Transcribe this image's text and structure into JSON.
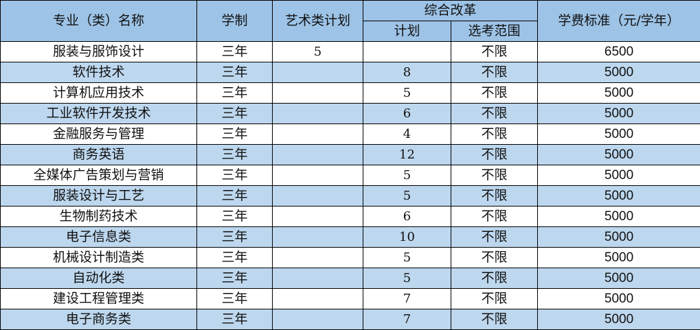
{
  "header": {
    "name": "专业（类）名称",
    "duration": "学制",
    "art_plan": "艺术类计划",
    "reform": "综合改革",
    "reform_plan": "计划",
    "reform_scope": "选考范围",
    "fee": "学费标准（元/学年）"
  },
  "colors": {
    "header_bg": "#9dc3e6",
    "alt_row_bg": "#bdd7ee"
  },
  "rows": [
    {
      "name": "服装与服饰设计",
      "duration": "三年",
      "art_plan": "5",
      "plan": "",
      "scope": "不限",
      "fee": "6500"
    },
    {
      "name": "软件技术",
      "duration": "三年",
      "art_plan": "",
      "plan": "8",
      "scope": "不限",
      "fee": "5000"
    },
    {
      "name": "计算机应用技术",
      "duration": "三年",
      "art_plan": "",
      "plan": "5",
      "scope": "不限",
      "fee": "5000"
    },
    {
      "name": "工业软件开发技术",
      "duration": "三年",
      "art_plan": "",
      "plan": "6",
      "scope": "不限",
      "fee": "5000"
    },
    {
      "name": "金融服务与管理",
      "duration": "三年",
      "art_plan": "",
      "plan": "4",
      "scope": "不限",
      "fee": "5000"
    },
    {
      "name": "商务英语",
      "duration": "三年",
      "art_plan": "",
      "plan": "12",
      "scope": "不限",
      "fee": "5000"
    },
    {
      "name": "全媒体广告策划与营销",
      "duration": "三年",
      "art_plan": "",
      "plan": "5",
      "scope": "不限",
      "fee": "5000"
    },
    {
      "name": "服装设计与工艺",
      "duration": "三年",
      "art_plan": "",
      "plan": "5",
      "scope": "不限",
      "fee": "5000"
    },
    {
      "name": "生物制药技术",
      "duration": "三年",
      "art_plan": "",
      "plan": "6",
      "scope": "不限",
      "fee": "5000"
    },
    {
      "name": "电子信息类",
      "duration": "三年",
      "art_plan": "",
      "plan": "10",
      "scope": "不限",
      "fee": "5000"
    },
    {
      "name": "机械设计制造类",
      "duration": "三年",
      "art_plan": "",
      "plan": "5",
      "scope": "不限",
      "fee": "5000"
    },
    {
      "name": "自动化类",
      "duration": "三年",
      "art_plan": "",
      "plan": "5",
      "scope": "不限",
      "fee": "5000"
    },
    {
      "name": "建设工程管理类",
      "duration": "三年",
      "art_plan": "",
      "plan": "7",
      "scope": "不限",
      "fee": "5000"
    },
    {
      "name": "电子商务类",
      "duration": "三年",
      "art_plan": "",
      "plan": "7",
      "scope": "不限",
      "fee": "5000"
    }
  ]
}
